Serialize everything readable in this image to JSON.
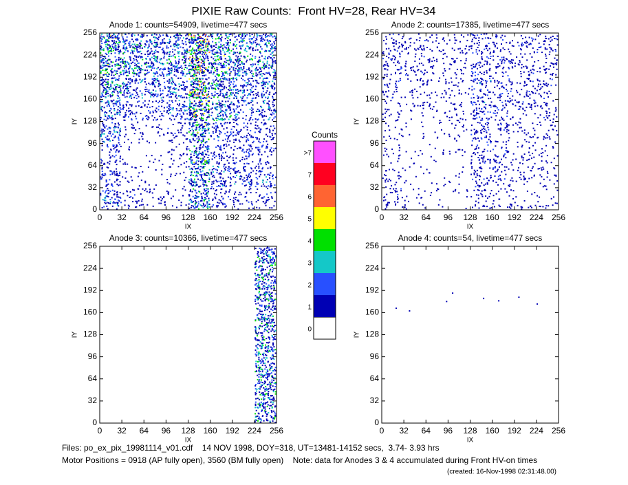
{
  "title": "PIXIE Raw Counts:  Front HV=28, Rear HV=34",
  "chart_data": [
    {
      "type": "heatmap",
      "title": "Anode 1: counts=54909, livetime=477 secs",
      "xlabel": "IX",
      "ylabel": "IY",
      "xlim": [
        0,
        256
      ],
      "ylim": [
        0,
        256
      ],
      "xticks": [
        0,
        32,
        64,
        96,
        128,
        160,
        192,
        224,
        256
      ],
      "yticks": [
        0,
        32,
        64,
        96,
        128,
        160,
        192,
        224,
        256
      ],
      "z": [
        [
          0.8,
          0.4,
          0.3,
          0.2,
          1.2,
          0.5,
          0.4,
          0.4
        ],
        [
          0.7,
          0.2,
          0.1,
          0.2,
          1.3,
          0.9,
          0.8,
          0.7
        ],
        [
          0.6,
          0.1,
          0.1,
          0.3,
          1.4,
          0.6,
          0.6,
          0.5
        ],
        [
          0.9,
          0.3,
          0.2,
          0.4,
          1.5,
          0.7,
          0.6,
          0.6
        ],
        [
          1.0,
          0.6,
          0.6,
          0.8,
          1.8,
          1.2,
          0.8,
          0.8
        ],
        [
          1.3,
          1.0,
          0.9,
          1.0,
          2.0,
          1.3,
          1.0,
          1.0
        ],
        [
          1.4,
          1.2,
          1.1,
          1.2,
          2.0,
          1.4,
          1.2,
          1.1
        ],
        [
          1.5,
          1.2,
          1.1,
          1.1,
          2.0,
          1.3,
          1.1,
          1.1
        ]
      ]
    },
    {
      "type": "heatmap",
      "title": "Anode 2: counts=17385, livetime=477 secs",
      "xlabel": "IX",
      "ylabel": "IY",
      "xlim": [
        0,
        256
      ],
      "ylim": [
        0,
        256
      ],
      "xticks": [
        0,
        32,
        64,
        96,
        128,
        160,
        192,
        224,
        256
      ],
      "yticks": [
        0,
        32,
        64,
        96,
        128,
        160,
        192,
        224,
        256
      ],
      "z": [
        [
          0.4,
          0.2,
          0.1,
          0.1,
          0.4,
          0.3,
          0.2,
          0.2
        ],
        [
          0.3,
          0.1,
          0.1,
          0.1,
          0.5,
          0.4,
          0.3,
          0.3
        ],
        [
          0.2,
          0.1,
          0.1,
          0.1,
          0.5,
          0.4,
          0.3,
          0.2
        ],
        [
          0.2,
          0.1,
          0.1,
          0.2,
          0.6,
          0.4,
          0.3,
          0.3
        ],
        [
          0.3,
          0.2,
          0.2,
          0.3,
          0.7,
          0.5,
          0.4,
          0.4
        ],
        [
          0.4,
          0.3,
          0.3,
          0.3,
          0.7,
          0.5,
          0.4,
          0.4
        ],
        [
          0.5,
          0.4,
          0.3,
          0.3,
          0.6,
          0.5,
          0.4,
          0.4
        ],
        [
          0.5,
          0.4,
          0.3,
          0.3,
          0.6,
          0.4,
          0.4,
          0.5
        ]
      ]
    },
    {
      "type": "heatmap",
      "title": "Anode 3: counts=10366, livetime=477 secs",
      "xlabel": "IX",
      "ylabel": "IY",
      "xlim": [
        0,
        256
      ],
      "ylim": [
        0,
        256
      ],
      "xticks": [
        0,
        32,
        64,
        96,
        128,
        160,
        192,
        224,
        256
      ],
      "yticks": [
        0,
        32,
        64,
        96,
        128,
        160,
        192,
        224,
        256
      ],
      "z": [
        [
          0,
          0,
          0,
          0,
          0,
          0,
          0,
          1.27
        ],
        [
          0,
          0,
          0,
          0,
          0,
          0,
          0,
          1.27
        ],
        [
          0,
          0,
          0,
          0,
          0,
          0,
          0,
          1.27
        ],
        [
          0,
          0,
          0,
          0,
          0,
          0,
          0,
          1.27
        ],
        [
          0,
          0,
          0,
          0,
          0,
          0,
          0,
          1.27
        ],
        [
          0,
          0,
          0,
          0,
          0,
          0,
          0,
          1.27
        ],
        [
          0,
          0,
          0,
          0,
          0,
          0,
          0,
          1.27
        ],
        [
          0,
          0,
          0,
          0,
          0,
          0,
          0,
          1.27
        ]
      ]
    },
    {
      "type": "heatmap",
      "title": "Anode 4: counts=54, livetime=477 secs",
      "xlabel": "IX",
      "ylabel": "IY",
      "xlim": [
        0,
        256
      ],
      "ylim": [
        0,
        256
      ],
      "xticks": [
        0,
        32,
        64,
        96,
        128,
        160,
        192,
        224,
        256
      ],
      "yticks": [
        0,
        32,
        64,
        96,
        128,
        160,
        192,
        224,
        256
      ],
      "z": [
        [
          0,
          0,
          0,
          0,
          0,
          0,
          0,
          0
        ],
        [
          0,
          0,
          0,
          0,
          0,
          0,
          0,
          0
        ],
        [
          0,
          0,
          0,
          0,
          0,
          0,
          0,
          0
        ],
        [
          0,
          0,
          0,
          0,
          0,
          0,
          0,
          0
        ],
        [
          0,
          0,
          0,
          0,
          0,
          0,
          0,
          0
        ],
        [
          0.007,
          0.007,
          0.007,
          0.007,
          0.007,
          0.007,
          0.007,
          0.007
        ],
        [
          0,
          0,
          0,
          0,
          0,
          0,
          0,
          0
        ],
        [
          0,
          0,
          0,
          0,
          0,
          0,
          0,
          0
        ]
      ]
    }
  ],
  "colorbar": {
    "title": "Counts",
    "levels": [
      "0",
      "1",
      "2",
      "3",
      "4",
      "5",
      "6",
      "7",
      ">7"
    ],
    "colors": [
      "#ffffff",
      "#0000b4",
      "#2850ff",
      "#14c8c8",
      "#00e000",
      "#ffff00",
      "#ff6432",
      "#ff0020",
      "#ff50ff"
    ]
  },
  "footer": [
    "Files: po_ex_pix_19981114_v01.cdf    14 NOV 1998, DOY=318, UT=13481-14152 secs,  3.74- 3.93 hrs",
    "Motor Positions = 0918 (AP fully open), 3560 (BM fully open)    Note: data for Anodes 3 & 4 accumulated during Front HV-on times",
    "(created: 16-Nov-1998 02:31:48.00)"
  ]
}
